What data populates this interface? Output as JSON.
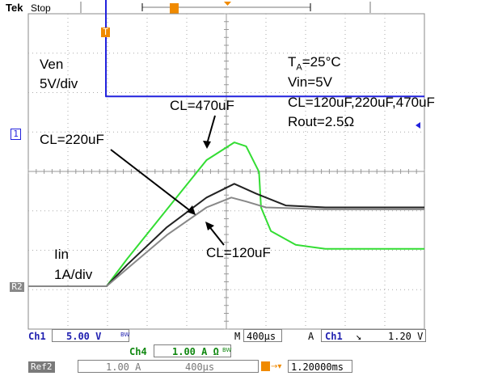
{
  "header": {
    "brand": "Tek",
    "status": "Stop"
  },
  "annotations": {
    "ven": "Ven",
    "ven_scale": "5V/div",
    "iin": "Iin",
    "iin_scale": "1A/div",
    "cl470": "CL=470uF",
    "cl220": "CL=220uF",
    "cl120": "CL=120uF",
    "cond_ta_prefix": "T",
    "cond_ta_sub": "A",
    "cond_ta_suffix": "=25°C",
    "cond_vin": "Vin=5V",
    "cond_cl": "CL=120uF,220uF,470uF",
    "cond_rout": "Rout=2.5Ω"
  },
  "markers": {
    "ch1": "1",
    "ref2": "R2",
    "trigger": "T"
  },
  "readout": {
    "ch1_label": "Ch1",
    "ch1_scale": "5.00 V",
    "ch1_bw": "BW",
    "timebase_m": "M",
    "timebase": "400µs",
    "trig_mode": "A",
    "trig_src": "Ch1",
    "trig_slope": "↘",
    "trig_level": "1.20 V",
    "ch4_label": "Ch4",
    "ch4_scale": "1.00 A Ω",
    "ch4_bw": "BW",
    "ref2_label": "Ref2",
    "ref2_scale": "1.00 A",
    "ref2_time": "400µs",
    "trig_pos": "1.20000ms"
  },
  "chart_data": {
    "type": "line",
    "title": "",
    "xlabel": "",
    "ylabel": "",
    "grid": true,
    "x_divisions": 10,
    "y_divisions": 8,
    "xlim": [
      0,
      4000
    ],
    "x_unit": "µs",
    "series": [
      {
        "name": "Ven",
        "color": "#2222dd",
        "unit": "V",
        "x": [
          0,
          784,
          784,
          4000
        ],
        "y": [
          17.5,
          17.5,
          5.0,
          5.0
        ]
      },
      {
        "name": "CL=470uF",
        "color": "#33dd33",
        "unit": "A",
        "x": [
          0,
          790,
          1000,
          1400,
          1800,
          2080,
          2200,
          2330,
          2350,
          2450,
          2700,
          3000,
          4000
        ],
        "y": [
          0,
          0,
          0.7,
          1.95,
          3.2,
          3.65,
          3.55,
          2.9,
          2.0,
          1.4,
          1.05,
          0.95,
          0.95
        ]
      },
      {
        "name": "CL=220uF",
        "color": "#222222",
        "unit": "A",
        "x": [
          0,
          790,
          1000,
          1400,
          1800,
          2080,
          2300,
          2600,
          3000,
          4000
        ],
        "y": [
          0,
          0,
          0.55,
          1.5,
          2.25,
          2.6,
          2.35,
          2.05,
          2.0,
          2.0
        ]
      },
      {
        "name": "CL=120uF",
        "color": "#888888",
        "unit": "A",
        "x": [
          0,
          790,
          1000,
          1400,
          1800,
          2050,
          2200,
          2400,
          3000,
          4000
        ],
        "y": [
          0,
          0,
          0.45,
          1.3,
          2.0,
          2.25,
          2.15,
          2.0,
          1.95,
          1.95
        ]
      }
    ]
  }
}
